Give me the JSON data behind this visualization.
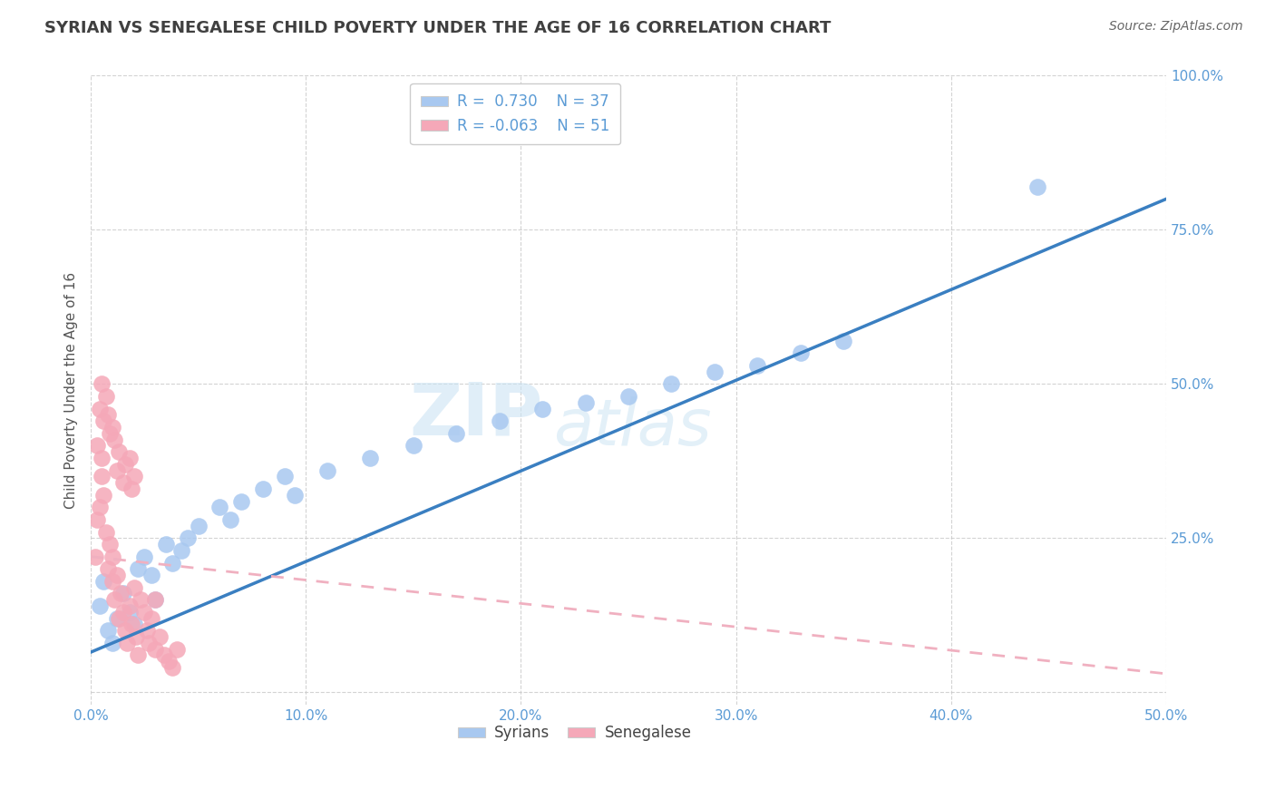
{
  "title": "SYRIAN VS SENEGALESE CHILD POVERTY UNDER THE AGE OF 16 CORRELATION CHART",
  "source": "Source: ZipAtlas.com",
  "ylabel": "Child Poverty Under the Age of 16",
  "xlim": [
    0.0,
    0.5
  ],
  "ylim": [
    -0.02,
    1.0
  ],
  "xticks": [
    0.0,
    0.1,
    0.2,
    0.3,
    0.4,
    0.5
  ],
  "yticks": [
    0.0,
    0.25,
    0.5,
    0.75,
    1.0
  ],
  "xtick_labels": [
    "0.0%",
    "10.0%",
    "20.0%",
    "30.0%",
    "40.0%",
    "50.0%"
  ],
  "ytick_labels": [
    "",
    "25.0%",
    "50.0%",
    "75.0%",
    "100.0%"
  ],
  "legend_entries": [
    {
      "color": "#a8c8f0",
      "label": "Syrians",
      "R": " 0.730",
      "N": "37"
    },
    {
      "color": "#f5a8b8",
      "label": "Senegalese",
      "R": "-0.063",
      "N": "51"
    }
  ],
  "syrian_scatter_x": [
    0.004,
    0.006,
    0.008,
    0.01,
    0.012,
    0.015,
    0.018,
    0.02,
    0.022,
    0.025,
    0.028,
    0.03,
    0.035,
    0.038,
    0.042,
    0.045,
    0.05,
    0.06,
    0.065,
    0.07,
    0.08,
    0.09,
    0.095,
    0.11,
    0.13,
    0.15,
    0.17,
    0.19,
    0.21,
    0.23,
    0.25,
    0.27,
    0.29,
    0.31,
    0.33,
    0.35,
    0.44
  ],
  "syrian_scatter_y": [
    0.14,
    0.18,
    0.1,
    0.08,
    0.12,
    0.16,
    0.13,
    0.11,
    0.2,
    0.22,
    0.19,
    0.15,
    0.24,
    0.21,
    0.23,
    0.25,
    0.27,
    0.3,
    0.28,
    0.31,
    0.33,
    0.35,
    0.32,
    0.36,
    0.38,
    0.4,
    0.42,
    0.44,
    0.46,
    0.47,
    0.48,
    0.5,
    0.52,
    0.53,
    0.55,
    0.57,
    0.82
  ],
  "senegalese_scatter_x": [
    0.002,
    0.003,
    0.004,
    0.005,
    0.005,
    0.006,
    0.007,
    0.008,
    0.009,
    0.01,
    0.01,
    0.011,
    0.012,
    0.013,
    0.014,
    0.015,
    0.016,
    0.017,
    0.018,
    0.019,
    0.02,
    0.021,
    0.022,
    0.023,
    0.025,
    0.026,
    0.027,
    0.028,
    0.03,
    0.032,
    0.034,
    0.036,
    0.038,
    0.04,
    0.003,
    0.006,
    0.009,
    0.012,
    0.015,
    0.018,
    0.004,
    0.007,
    0.01,
    0.013,
    0.016,
    0.019,
    0.005,
    0.008,
    0.011,
    0.02,
    0.03
  ],
  "senegalese_scatter_y": [
    0.22,
    0.28,
    0.3,
    0.35,
    0.38,
    0.32,
    0.26,
    0.2,
    0.24,
    0.18,
    0.22,
    0.15,
    0.19,
    0.12,
    0.16,
    0.13,
    0.1,
    0.08,
    0.14,
    0.11,
    0.17,
    0.09,
    0.06,
    0.15,
    0.13,
    0.1,
    0.08,
    0.12,
    0.07,
    0.09,
    0.06,
    0.05,
    0.04,
    0.07,
    0.4,
    0.44,
    0.42,
    0.36,
    0.34,
    0.38,
    0.46,
    0.48,
    0.43,
    0.39,
    0.37,
    0.33,
    0.5,
    0.45,
    0.41,
    0.35,
    0.15
  ],
  "syrian_line": {
    "x0": 0.0,
    "y0": 0.065,
    "x1": 0.5,
    "y1": 0.8
  },
  "senegalese_line": {
    "x0": 0.0,
    "y0": 0.22,
    "x1": 0.5,
    "y1": 0.03
  },
  "watermark_line1": "ZIP",
  "watermark_line2": "atlas",
  "bg_color": "#ffffff",
  "grid_color": "#c8c8c8",
  "title_color": "#404040",
  "axis_tick_color": "#5b9bd5",
  "ylabel_color": "#555555",
  "scatter_syrian_color": "#a8c8f0",
  "scatter_senegalese_color": "#f5a8b8",
  "line_syrian_color": "#3a7fc1",
  "line_senegalese_color": "#f0b0c0"
}
